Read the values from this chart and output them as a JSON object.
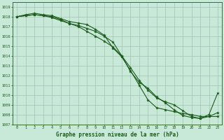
{
  "title": "Graphe pression niveau de la mer (hPa)",
  "bg_color": "#c8e8d8",
  "grid_color": "#99bbaa",
  "line_color": "#1a5c1a",
  "marker_color": "#1a5c1a",
  "xlim": [
    -0.5,
    23.5
  ],
  "ylim": [
    1007,
    1019.5
  ],
  "xticks": [
    0,
    1,
    2,
    3,
    4,
    5,
    6,
    7,
    8,
    9,
    10,
    11,
    12,
    13,
    14,
    15,
    16,
    17,
    18,
    19,
    20,
    21,
    22,
    23
  ],
  "yticks": [
    1007,
    1008,
    1009,
    1010,
    1011,
    1012,
    1013,
    1014,
    1015,
    1016,
    1017,
    1018,
    1019
  ],
  "series": [
    [
      1018.0,
      1018.2,
      1018.35,
      1018.2,
      1018.1,
      1017.8,
      1017.5,
      1017.35,
      1017.2,
      1016.7,
      1016.1,
      1014.8,
      1013.9,
      1012.5,
      1011.0,
      1009.5,
      1008.7,
      1008.5,
      1008.3,
      1008.1,
      1008.0,
      1007.8,
      1007.8,
      1007.8
    ],
    [
      1018.0,
      1018.1,
      1018.2,
      1018.1,
      1018.0,
      1017.7,
      1017.3,
      1017.1,
      1016.8,
      1016.5,
      1016.0,
      1015.4,
      1014.0,
      1012.8,
      1011.5,
      1010.5,
      1009.7,
      1009.3,
      1009.0,
      1008.4,
      1007.8,
      1007.6,
      1007.8,
      1008.2
    ],
    [
      1018.0,
      1018.1,
      1018.2,
      1018.1,
      1017.9,
      1017.6,
      1017.3,
      1017.0,
      1016.5,
      1016.0,
      1015.5,
      1014.9,
      1014.0,
      1012.4,
      1011.3,
      1010.7,
      1009.8,
      1009.2,
      1008.5,
      1007.9,
      1007.7,
      1007.6,
      1008.0,
      1010.2
    ]
  ]
}
